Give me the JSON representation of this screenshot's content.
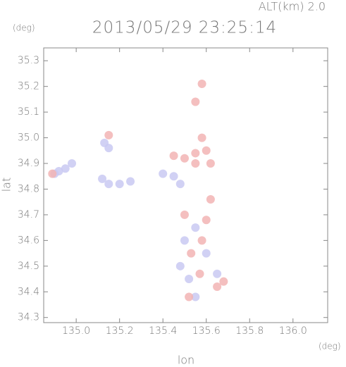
{
  "chart_data": {
    "type": "scatter",
    "title": "2013/05/29 23:25:14",
    "subtitle": "ALT(km) 2.0",
    "y_unit": "(deg)",
    "x_unit": "(deg)",
    "xlabel": "lon",
    "ylabel": "lat",
    "xlim": [
      134.85,
      136.16
    ],
    "ylim": [
      34.28,
      35.35
    ],
    "xticks": [
      {
        "value": 135,
        "label": "135.0"
      },
      135.2,
      135.4,
      135.6,
      135.8,
      {
        "value": 136,
        "label": "136.0"
      }
    ],
    "yticks": [
      34.3,
      34.4,
      34.5,
      34.6,
      34.7,
      34.8,
      34.9,
      {
        "value": 35,
        "label": "35.0"
      },
      35.1,
      35.2,
      35.3
    ],
    "series": [
      {
        "color": "#c9c9f2",
        "x": [
          134.92,
          134.95,
          134.98,
          134.9,
          135.15,
          135.12,
          135.2,
          135.25,
          135.4,
          135.45,
          135.48,
          135.13,
          135.15,
          135.5,
          135.48,
          135.52,
          135.55,
          135.55,
          135.6,
          135.65
        ],
        "y": [
          34.87,
          34.88,
          34.9,
          34.86,
          34.82,
          34.84,
          34.82,
          34.83,
          34.86,
          34.85,
          34.82,
          34.98,
          34.96,
          34.6,
          34.5,
          34.45,
          34.38,
          34.65,
          34.55,
          34.47
        ]
      },
      {
        "color": "#f2b4b4",
        "x": [
          135.45,
          135.5,
          135.55,
          135.55,
          135.6,
          135.58,
          135.62,
          135.58,
          135.55,
          135.62,
          135.53,
          135.58,
          135.65,
          135.68,
          135.52,
          134.89,
          135.15,
          135.6,
          135.5,
          135.57
        ],
        "y": [
          34.93,
          34.92,
          34.94,
          34.9,
          34.95,
          35.0,
          34.9,
          35.21,
          35.14,
          34.76,
          34.55,
          34.6,
          34.42,
          34.44,
          34.38,
          34.86,
          35.01,
          34.68,
          34.7,
          34.47
        ]
      }
    ]
  }
}
